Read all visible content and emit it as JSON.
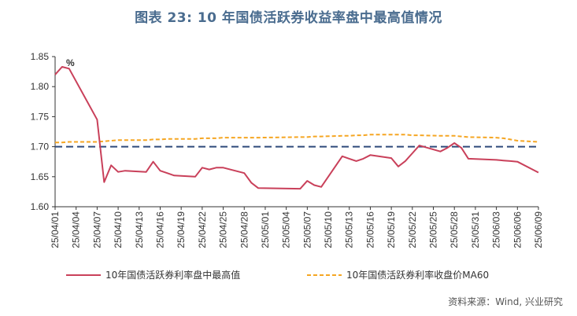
{
  "title": "图表 23: 10 年国债活跃券收益率盘中最高值情况",
  "unit_label": "%",
  "source": "资料来源：Wind, 兴业研究",
  "colors": {
    "series1": "#c9405a",
    "series2": "#f5a623",
    "refline": "#2e4a7a",
    "axis": "#333333"
  },
  "chart_data": {
    "type": "line",
    "ylim": [
      1.6,
      1.85
    ],
    "yticks": [
      "1.60",
      "1.65",
      "1.70",
      "1.75",
      "1.80",
      "1.85"
    ],
    "xticks": [
      "25/04/01",
      "25/04/04",
      "25/04/07",
      "25/04/10",
      "25/04/13",
      "25/04/16",
      "25/04/19",
      "25/04/22",
      "25/04/25",
      "25/04/28",
      "25/05/01",
      "25/05/04",
      "25/05/07",
      "25/05/10",
      "25/05/13",
      "25/05/16",
      "25/05/19",
      "25/05/22",
      "25/05/25",
      "25/05/28",
      "25/05/31",
      "25/06/03",
      "25/06/06",
      "25/06/09"
    ],
    "reference_line": 1.7,
    "x": [
      "25/04/01",
      "25/04/02",
      "25/04/03",
      "25/04/07",
      "25/04/08",
      "25/04/09",
      "25/04/10",
      "25/04/11",
      "25/04/14",
      "25/04/15",
      "25/04/16",
      "25/04/17",
      "25/04/18",
      "25/04/21",
      "25/04/22",
      "25/04/23",
      "25/04/24",
      "25/04/25",
      "25/04/28",
      "25/04/29",
      "25/04/30",
      "25/05/06",
      "25/05/07",
      "25/05/08",
      "25/05/09",
      "25/05/12",
      "25/05/13",
      "25/05/14",
      "25/05/15",
      "25/05/16",
      "25/05/19",
      "25/05/20",
      "25/05/21",
      "25/05/22",
      "25/05/23",
      "25/05/26",
      "25/05/27",
      "25/05/28",
      "25/05/29",
      "25/05/30",
      "25/06/03",
      "25/06/04",
      "25/06/05",
      "25/06/06",
      "25/06/09"
    ],
    "series": [
      {
        "name": "10年国债活跃券利率盘中最高值",
        "style": "solid",
        "values": [
          1.82,
          1.833,
          1.83,
          1.745,
          1.641,
          1.669,
          1.658,
          1.66,
          1.658,
          1.675,
          1.66,
          1.656,
          1.652,
          1.65,
          1.665,
          1.662,
          1.665,
          1.665,
          1.656,
          1.64,
          1.631,
          1.63,
          1.643,
          1.636,
          1.633,
          1.684,
          1.68,
          1.676,
          1.68,
          1.686,
          1.681,
          1.667,
          1.676,
          1.689,
          1.702,
          1.692,
          1.698,
          1.706,
          1.698,
          1.68,
          1.678,
          1.677,
          1.676,
          1.675,
          1.657
        ]
      },
      {
        "name": "10年国债活跃券利率收盘价MA60",
        "style": "dashed",
        "values": [
          1.707,
          1.707,
          1.708,
          1.708,
          1.709,
          1.71,
          1.711,
          1.711,
          1.711,
          1.712,
          1.712,
          1.713,
          1.713,
          1.713,
          1.714,
          1.714,
          1.714,
          1.715,
          1.715,
          1.715,
          1.715,
          1.716,
          1.716,
          1.717,
          1.717,
          1.718,
          1.718,
          1.719,
          1.719,
          1.72,
          1.72,
          1.72,
          1.72,
          1.719,
          1.719,
          1.718,
          1.718,
          1.718,
          1.717,
          1.716,
          1.715,
          1.714,
          1.712,
          1.71,
          1.708
        ]
      }
    ]
  }
}
